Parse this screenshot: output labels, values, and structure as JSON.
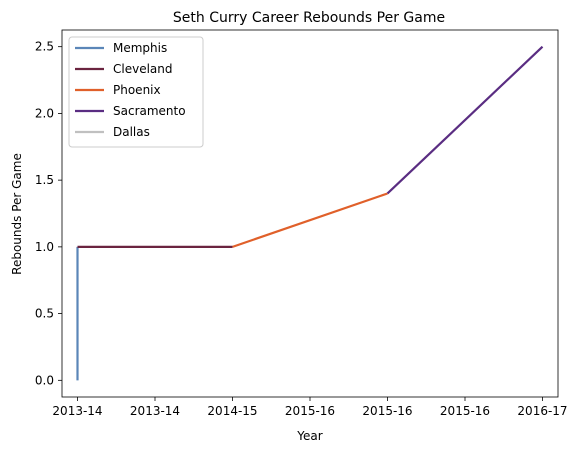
{
  "chart_data": {
    "type": "line",
    "title": "Seth Curry Career Rebounds Per Game",
    "xlabel": "Year",
    "ylabel": "Rebounds Per Game",
    "x_ticks": [
      "2013-14",
      "2013-14",
      "2014-15",
      "2015-16",
      "2015-16",
      "2015-16",
      "2016-17"
    ],
    "y_ticks": [
      "0.0",
      "0.5",
      "1.0",
      "1.5",
      "2.0",
      "2.5"
    ],
    "xlim": [
      -0.2,
      6.2
    ],
    "ylim": [
      -0.125,
      2.625
    ],
    "grid": false,
    "legend_position": "top-left",
    "series": [
      {
        "name": "Memphis",
        "color": "#5b86b8",
        "points": [
          [
            0,
            0.0
          ],
          [
            0,
            1.0
          ]
        ]
      },
      {
        "name": "Cleveland",
        "color": "#6b2440",
        "points": [
          [
            0,
            1.0
          ],
          [
            2,
            1.0
          ]
        ]
      },
      {
        "name": "Phoenix",
        "color": "#e0602a",
        "points": [
          [
            2,
            1.0
          ],
          [
            4,
            1.4
          ]
        ]
      },
      {
        "name": "Sacramento",
        "color": "#5a2d82",
        "points": [
          [
            4,
            1.4
          ],
          [
            6,
            2.5
          ]
        ]
      },
      {
        "name": "Dallas",
        "color": "#c0c0c0",
        "points": []
      }
    ]
  }
}
